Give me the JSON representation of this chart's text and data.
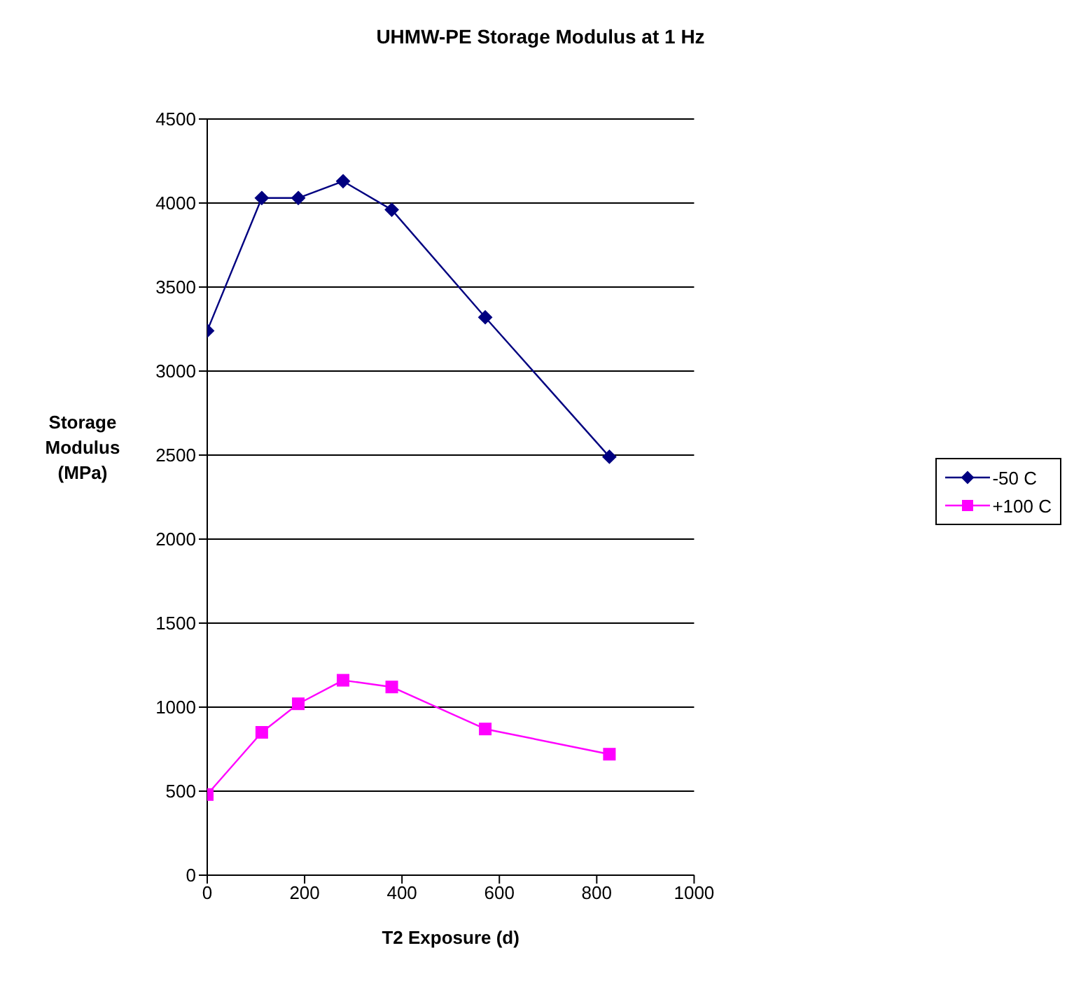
{
  "chart_data": {
    "type": "line",
    "title": "UHMW-PE Storage Modulus at 1 Hz",
    "xlabel": "T2 Exposure (d)",
    "ylabel": "Storage Modulus (MPa)",
    "x": [
      0,
      112,
      187,
      279,
      379,
      571,
      826
    ],
    "series": [
      {
        "name": "-50 C",
        "color": "#000080",
        "marker": "diamond",
        "values": [
          3240,
          4030,
          4030,
          4130,
          3960,
          3320,
          2490
        ]
      },
      {
        "name": "+100 C",
        "color": "#ff00ff",
        "marker": "square",
        "values": [
          480,
          850,
          1020,
          1160,
          1120,
          870,
          720
        ]
      }
    ],
    "xlim": [
      0,
      1000
    ],
    "xticks": [
      0,
      200,
      400,
      600,
      800,
      1000
    ],
    "ylim": [
      0,
      4500
    ],
    "yticks": [
      0,
      500,
      1000,
      1500,
      2000,
      2500,
      3000,
      3500,
      4000,
      4500
    ],
    "grid": "y",
    "legend": "right"
  }
}
